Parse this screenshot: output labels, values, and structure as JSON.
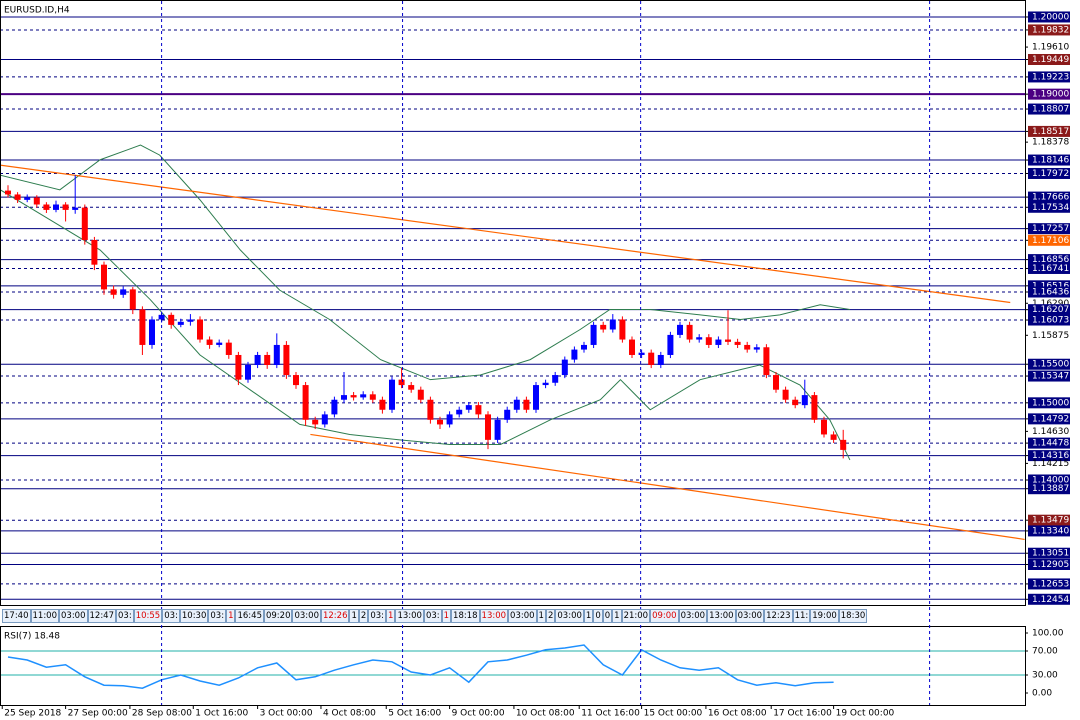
{
  "chart_data": {
    "type": "candlestick",
    "title": "EURUSD.ID,H4",
    "ylim": [
      1.1238,
      1.2022
    ],
    "up_color": "#0000ff",
    "down_color": "#ff0000",
    "candles": [
      [
        1.1775,
        1.1782,
        1.1766,
        1.177
      ],
      [
        1.177,
        1.1773,
        1.1759,
        1.1763
      ],
      [
        1.1763,
        1.177,
        1.176,
        1.1766
      ],
      [
        1.1766,
        1.1769,
        1.1753,
        1.1757
      ],
      [
        1.1757,
        1.176,
        1.1746,
        1.175
      ],
      [
        1.175,
        1.1762,
        1.1747,
        1.1757
      ],
      [
        1.1757,
        1.176,
        1.1735,
        1.175
      ],
      [
        1.175,
        1.1795,
        1.1745,
        1.1753
      ],
      [
        1.1753,
        1.1757,
        1.1705,
        1.1711
      ],
      [
        1.1711,
        1.1715,
        1.1672,
        1.1679
      ],
      [
        1.1679,
        1.1683,
        1.164,
        1.1647
      ],
      [
        1.1647,
        1.1652,
        1.1635,
        1.164
      ],
      [
        1.164,
        1.1651,
        1.1636,
        1.1647
      ],
      [
        1.1647,
        1.165,
        1.1615,
        1.1621
      ],
      [
        1.1621,
        1.1625,
        1.1562,
        1.1575
      ],
      [
        1.1575,
        1.1612,
        1.157,
        1.1608
      ],
      [
        1.1608,
        1.1618,
        1.1604,
        1.1614
      ],
      [
        1.1614,
        1.1617,
        1.1596,
        1.1601
      ],
      [
        1.1601,
        1.1609,
        1.1598,
        1.1605
      ],
      [
        1.1605,
        1.1615,
        1.16,
        1.1608
      ],
      [
        1.1608,
        1.1612,
        1.1578,
        1.1582
      ],
      [
        1.1582,
        1.1586,
        1.157,
        1.1575
      ],
      [
        1.1575,
        1.1582,
        1.1572,
        1.1578
      ],
      [
        1.1578,
        1.1582,
        1.1557,
        1.1562
      ],
      [
        1.1562,
        1.1566,
        1.1523,
        1.153
      ],
      [
        1.153,
        1.1553,
        1.1526,
        1.1549
      ],
      [
        1.1549,
        1.1566,
        1.1545,
        1.1562
      ],
      [
        1.1562,
        1.1566,
        1.1544,
        1.1549
      ],
      [
        1.1549,
        1.159,
        1.1545,
        1.1575
      ],
      [
        1.1575,
        1.158,
        1.1531,
        1.1536
      ],
      [
        1.1536,
        1.154,
        1.1518,
        1.1523
      ],
      [
        1.1523,
        1.1527,
        1.147,
        1.1478
      ],
      [
        1.1478,
        1.1482,
        1.1466,
        1.1472
      ],
      [
        1.1472,
        1.1489,
        1.1468,
        1.1485
      ],
      [
        1.1485,
        1.1508,
        1.1481,
        1.1504
      ],
      [
        1.1504,
        1.154,
        1.15,
        1.151
      ],
      [
        1.151,
        1.1514,
        1.1503,
        1.1507
      ],
      [
        1.1507,
        1.1515,
        1.1504,
        1.1511
      ],
      [
        1.1511,
        1.1515,
        1.15,
        1.1504
      ],
      [
        1.1504,
        1.1508,
        1.1486,
        1.1491
      ],
      [
        1.1491,
        1.1534,
        1.1487,
        1.153
      ],
      [
        1.153,
        1.1545,
        1.1519,
        1.1523
      ],
      [
        1.1523,
        1.1527,
        1.1513,
        1.1517
      ],
      [
        1.1517,
        1.1521,
        1.15,
        1.1504
      ],
      [
        1.1504,
        1.1508,
        1.1473,
        1.1478
      ],
      [
        1.1478,
        1.1482,
        1.1466,
        1.1472
      ],
      [
        1.1472,
        1.1489,
        1.1468,
        1.1485
      ],
      [
        1.1485,
        1.1495,
        1.1481,
        1.1491
      ],
      [
        1.1491,
        1.1501,
        1.1487,
        1.1497
      ],
      [
        1.1497,
        1.1501,
        1.148,
        1.1485
      ],
      [
        1.1485,
        1.1489,
        1.144,
        1.1452
      ],
      [
        1.1452,
        1.1482,
        1.1448,
        1.1478
      ],
      [
        1.1478,
        1.1495,
        1.1474,
        1.1491
      ],
      [
        1.1491,
        1.1508,
        1.1487,
        1.1504
      ],
      [
        1.1504,
        1.1508,
        1.1487,
        1.1491
      ],
      [
        1.1491,
        1.1527,
        1.1487,
        1.1523
      ],
      [
        1.1523,
        1.153,
        1.1519,
        1.1526
      ],
      [
        1.1526,
        1.154,
        1.1522,
        1.1536
      ],
      [
        1.1536,
        1.156,
        1.1532,
        1.1556
      ],
      [
        1.1556,
        1.1573,
        1.1552,
        1.1569
      ],
      [
        1.1569,
        1.1579,
        1.1565,
        1.1575
      ],
      [
        1.1575,
        1.1605,
        1.1571,
        1.1601
      ],
      [
        1.1601,
        1.1605,
        1.1591,
        1.1595
      ],
      [
        1.1595,
        1.1615,
        1.1591,
        1.1608
      ],
      [
        1.1608,
        1.1612,
        1.1578,
        1.1582
      ],
      [
        1.1582,
        1.1586,
        1.1558,
        1.1562
      ],
      [
        1.1562,
        1.1569,
        1.1558,
        1.1565
      ],
      [
        1.1565,
        1.1569,
        1.1545,
        1.1549
      ],
      [
        1.1549,
        1.1566,
        1.1545,
        1.1562
      ],
      [
        1.1562,
        1.1592,
        1.1558,
        1.1588
      ],
      [
        1.1588,
        1.1605,
        1.1584,
        1.1601
      ],
      [
        1.1601,
        1.1605,
        1.1578,
        1.1582
      ],
      [
        1.1582,
        1.1589,
        1.1578,
        1.1585
      ],
      [
        1.1585,
        1.1589,
        1.1571,
        1.1575
      ],
      [
        1.1575,
        1.1586,
        1.1571,
        1.1582
      ],
      [
        1.1582,
        1.162,
        1.1575,
        1.1579
      ],
      [
        1.1579,
        1.1583,
        1.1571,
        1.1575
      ],
      [
        1.1575,
        1.1579,
        1.1565,
        1.1569
      ],
      [
        1.1569,
        1.1576,
        1.1565,
        1.1572
      ],
      [
        1.1572,
        1.1576,
        1.1532,
        1.1536
      ],
      [
        1.1536,
        1.154,
        1.1513,
        1.1517
      ],
      [
        1.1517,
        1.1521,
        1.15,
        1.1504
      ],
      [
        1.1504,
        1.1508,
        1.1493,
        1.1497
      ],
      [
        1.1497,
        1.153,
        1.1493,
        1.151
      ],
      [
        1.151,
        1.1514,
        1.1474,
        1.1478
      ],
      [
        1.1478,
        1.1482,
        1.1455,
        1.1459
      ],
      [
        1.1459,
        1.1463,
        1.1448,
        1.1452
      ],
      [
        1.1452,
        1.1465,
        1.1428,
        1.1439
      ]
    ],
    "levels": [
      {
        "value": 1.2,
        "label": "1.20000",
        "color": "#000080",
        "line": "solid"
      },
      {
        "value": 1.19832,
        "label": "1.19832",
        "color": "#8b1a1a",
        "line": "dash"
      },
      {
        "value": 1.1961,
        "label": "1.19610",
        "color": null,
        "line": null
      },
      {
        "value": 1.19449,
        "label": "1.19449",
        "color": "#8b1a1a",
        "line": "solid"
      },
      {
        "value": 1.19223,
        "label": "1.19223",
        "color": "#000080",
        "line": "dash"
      },
      {
        "value": 1.19,
        "label": "1.19000",
        "color": "#4b0082",
        "line": "thick"
      },
      {
        "value": 1.18807,
        "label": "1.18807",
        "color": "#000080",
        "line": "dash"
      },
      {
        "value": 1.18517,
        "label": "1.18517",
        "color": "#8b1a1a",
        "line": "solid"
      },
      {
        "value": 1.18378,
        "label": "1.18378",
        "color": null,
        "line": null
      },
      {
        "value": 1.18146,
        "label": "1.18146",
        "color": "#000080",
        "line": "solid"
      },
      {
        "value": 1.17972,
        "label": "1.17972",
        "color": "#000080",
        "line": "dash"
      },
      {
        "value": 1.17666,
        "label": "1.17666",
        "color": "#000080",
        "line": "solid"
      },
      {
        "value": 1.17534,
        "label": "1.17534",
        "color": "#000080",
        "line": "dash"
      },
      {
        "value": 1.17257,
        "label": "1.17257",
        "color": "#000080",
        "line": "solid"
      },
      {
        "value": 1.17106,
        "label": "1.17106",
        "color": "#ff6600",
        "line": "dash"
      },
      {
        "value": 1.16856,
        "label": "1.16856",
        "color": "#000080",
        "line": "solid"
      },
      {
        "value": 1.16741,
        "label": "1.16741",
        "color": "#000080",
        "line": "dash"
      },
      {
        "value": 1.16516,
        "label": "1.16516",
        "color": "#000080",
        "line": "solid"
      },
      {
        "value": 1.16436,
        "label": "1.16436",
        "color": "#000080",
        "line": "dash"
      },
      {
        "value": 1.1629,
        "label": "1.16290",
        "color": null,
        "line": null
      },
      {
        "value": 1.16207,
        "label": "1.16207",
        "color": "#000080",
        "line": "solid"
      },
      {
        "value": 1.16073,
        "label": "1.16073",
        "color": "#000080",
        "line": "dash"
      },
      {
        "value": 1.15875,
        "label": "1.15875",
        "color": null,
        "line": null
      },
      {
        "value": 1.155,
        "label": "1.15500",
        "color": "#000080",
        "line": "solid"
      },
      {
        "value": 1.15347,
        "label": "1.15347",
        "color": "#000080",
        "line": "dash"
      },
      {
        "value": 1.15,
        "label": "1.15000",
        "color": "#000080",
        "line": "dash"
      },
      {
        "value": 1.14792,
        "label": "1.14792",
        "color": "#000080",
        "line": "solid"
      },
      {
        "value": 1.1463,
        "label": "1.14630",
        "color": null,
        "line": null
      },
      {
        "value": 1.14478,
        "label": "1.14478",
        "color": "#000080",
        "line": "dash"
      },
      {
        "value": 1.14316,
        "label": "1.14316",
        "color": "#000080",
        "line": "solid"
      },
      {
        "value": 1.14215,
        "label": "1.14215",
        "color": null,
        "line": null
      },
      {
        "value": 1.14,
        "label": "1.14000",
        "color": "#000080",
        "line": "dash"
      },
      {
        "value": 1.13887,
        "label": "1.13887",
        "color": "#000080",
        "line": "solid"
      },
      {
        "value": 1.13479,
        "label": "1.13479",
        "color": "#8b1a1a",
        "line": "dash"
      },
      {
        "value": 1.1334,
        "label": "1.13340",
        "color": "#000080",
        "line": "solid"
      },
      {
        "value": 1.13051,
        "label": "1.13051",
        "color": "#000080",
        "line": "solid"
      },
      {
        "value": 1.12905,
        "label": "1.12905",
        "color": "#000080",
        "line": "solid"
      },
      {
        "value": 1.12653,
        "label": "1.12653",
        "color": "#000080",
        "line": "dash"
      },
      {
        "value": 1.12454,
        "label": "1.12454",
        "color": "#000080",
        "line": "solid"
      }
    ],
    "trendlines": [
      {
        "x": [
          -0.8,
          104.4
        ],
        "y": [
          1.1808,
          1.163
        ],
        "color": "#ff6600"
      },
      {
        "x": [
          31.5,
          105.9
        ],
        "y": [
          1.1459,
          1.1323
        ],
        "color": "#ff6600"
      }
    ],
    "bands": [
      {
        "color": "#2e7d4f",
        "x": [
          -0.8,
          5.4,
          9.6,
          13.8,
          15.8,
          20,
          24.2,
          28.3,
          33.5,
          38.8,
          44,
          49.2,
          54.4,
          59.6,
          62.7,
          66.9,
          72.1,
          76.3,
          80.4,
          84.6,
          87.7
        ],
        "y": [
          1.1795,
          1.1776,
          1.1815,
          1.1834,
          1.1821,
          1.1763,
          1.1698,
          1.1646,
          1.1608,
          1.1556,
          1.153,
          1.1536,
          1.1556,
          1.1595,
          1.1621,
          1.1621,
          1.1614,
          1.1608,
          1.1614,
          1.1627,
          1.1621
        ]
      },
      {
        "color": "#2e7d4f",
        "x": [
          -0.8,
          4.4,
          9.6,
          14.8,
          20,
          25.2,
          30.4,
          35.6,
          40.8,
          46,
          51.3,
          56.5,
          61.7,
          63.8,
          66.9,
          72.1,
          76.3,
          78.3,
          82.5,
          85.6,
          87.7
        ],
        "y": [
          1.1776,
          1.1737,
          1.1698,
          1.1634,
          1.1562,
          1.1517,
          1.1472,
          1.1459,
          1.1452,
          1.1446,
          1.1446,
          1.1478,
          1.1504,
          1.153,
          1.1491,
          1.153,
          1.1543,
          1.1549,
          1.1523,
          1.1478,
          1.1426
        ]
      }
    ],
    "vlines": [
      16,
      41.1,
      65.9,
      96
    ],
    "xticks": [
      {
        "value": -0.6,
        "label": "25 Sep 2018"
      },
      {
        "value": 6,
        "label": "27 Sep 00:00"
      },
      {
        "value": 12.7,
        "label": "28 Sep 08:00"
      },
      {
        "value": 19.3,
        "label": "1 Oct 16:00"
      },
      {
        "value": 26,
        "label": "3 Oct 00:00"
      },
      {
        "value": 32.6,
        "label": "4 Oct 08:00"
      },
      {
        "value": 39.4,
        "label": "5 Oct 16:00"
      },
      {
        "value": 46,
        "label": "9 Oct 00:00"
      },
      {
        "value": 52.7,
        "label": "10 Oct 08:00"
      },
      {
        "value": 59.5,
        "label": "11 Oct 16:00"
      },
      {
        "value": 66,
        "label": "15 Oct 00:00"
      },
      {
        "value": 72.7,
        "label": "16 Oct 08:00"
      },
      {
        "value": 79.5,
        "label": "17 Oct 16:00"
      },
      {
        "value": 86,
        "label": "19 Oct 00:00"
      }
    ],
    "time_labels": [
      {
        "text": "17:40",
        "color": "#000"
      },
      {
        "text": "11:00",
        "color": "#000"
      },
      {
        "text": "03:00",
        "color": "#000"
      },
      {
        "text": "12:47",
        "color": "#000"
      },
      {
        "text": "03:",
        "color": "#000"
      },
      {
        "text": "10:55",
        "color": "#d00"
      },
      {
        "text": "03:",
        "color": "#000"
      },
      {
        "text": "10:30",
        "color": "#000"
      },
      {
        "text": "03:",
        "color": "#000"
      },
      {
        "text": "1",
        "color": "#d00"
      },
      {
        "text": "16:45",
        "color": "#000"
      },
      {
        "text": "09:20",
        "color": "#000"
      },
      {
        "text": "03:00",
        "color": "#000"
      },
      {
        "text": "12:26",
        "color": "#d00"
      },
      {
        "text": "1",
        "color": "#000"
      },
      {
        "text": "2",
        "color": "#000"
      },
      {
        "text": "03:",
        "color": "#000"
      },
      {
        "text": "1",
        "color": "#d00"
      },
      {
        "text": "13:00",
        "color": "#000"
      },
      {
        "text": "03:",
        "color": "#000"
      },
      {
        "text": "1",
        "color": "#d00"
      },
      {
        "text": "18:18",
        "color": "#000"
      },
      {
        "text": "13:00",
        "color": "#d00"
      },
      {
        "text": "03:00",
        "color": "#000"
      },
      {
        "text": "1",
        "color": "#000"
      },
      {
        "text": "2",
        "color": "#000"
      },
      {
        "text": "03:00",
        "color": "#000"
      },
      {
        "text": "1",
        "color": "#000"
      },
      {
        "text": "0",
        "color": "#000"
      },
      {
        "text": "0",
        "color": "#000"
      },
      {
        "text": "1",
        "color": "#000"
      },
      {
        "text": "21:00",
        "color": "#000"
      },
      {
        "text": "09:00",
        "color": "#d00"
      },
      {
        "text": "03:00",
        "color": "#000"
      },
      {
        "text": "13:00",
        "color": "#000"
      },
      {
        "text": "03:00",
        "color": "#000"
      },
      {
        "text": "12:23",
        "color": "#000"
      },
      {
        "text": "11:",
        "color": "#000"
      },
      {
        "text": "19:00",
        "color": "#000"
      },
      {
        "text": "18:30",
        "color": "#000"
      }
    ],
    "rsi": {
      "title": "RSI(7) 18.48",
      "color": "#1e90ff",
      "ylim": [
        -20,
        110
      ],
      "yticks": [
        {
          "value": 100,
          "label": "100.00"
        },
        {
          "value": 70,
          "label": "70.00"
        },
        {
          "value": 30,
          "label": "30.00"
        },
        {
          "value": 0,
          "label": "0.00"
        }
      ],
      "levels": [
        70,
        30
      ],
      "x": [
        0,
        2,
        4,
        6,
        8,
        10,
        12,
        14,
        16,
        18,
        20,
        22,
        24,
        26,
        28,
        30,
        32,
        34,
        36,
        38,
        40,
        42,
        44,
        46,
        48,
        50,
        52,
        54,
        56,
        58,
        60,
        62,
        64,
        66,
        68,
        70,
        72,
        74,
        76,
        78,
        80,
        82,
        84,
        86
      ],
      "values": [
        60,
        55,
        43,
        47,
        27,
        13,
        12,
        8,
        22,
        30,
        20,
        13,
        25,
        42,
        50,
        22,
        27,
        38,
        47,
        55,
        52,
        35,
        30,
        42,
        18,
        52,
        55,
        63,
        72,
        75,
        80,
        47,
        30,
        72,
        55,
        42,
        38,
        42,
        22,
        13,
        17,
        12,
        17,
        18
      ]
    }
  }
}
